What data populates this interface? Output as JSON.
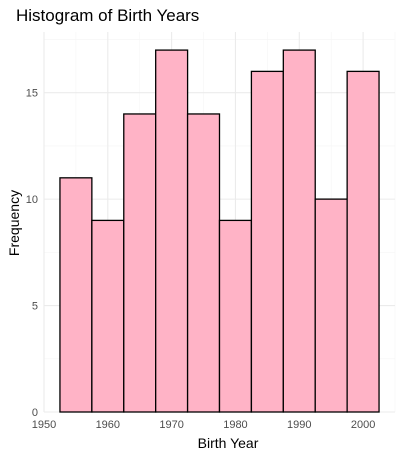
{
  "chart_data": {
    "type": "bar",
    "title": "Histogram of Birth Years",
    "xlabel": "Birth Year",
    "ylabel": "Frequency",
    "bin_width": 5,
    "bins": [
      {
        "start": 1952.5,
        "end": 1957.5,
        "value": 11
      },
      {
        "start": 1957.5,
        "end": 1962.5,
        "value": 9
      },
      {
        "start": 1962.5,
        "end": 1967.5,
        "value": 14
      },
      {
        "start": 1967.5,
        "end": 1972.5,
        "value": 17
      },
      {
        "start": 1972.5,
        "end": 1977.5,
        "value": 14
      },
      {
        "start": 1977.5,
        "end": 1982.5,
        "value": 9
      },
      {
        "start": 1982.5,
        "end": 1987.5,
        "value": 16
      },
      {
        "start": 1987.5,
        "end": 1992.5,
        "value": 17
      },
      {
        "start": 1992.5,
        "end": 1997.5,
        "value": 10
      },
      {
        "start": 1997.5,
        "end": 2002.5,
        "value": 16
      }
    ],
    "x_ticks": [
      "1950",
      "1960",
      "1970",
      "1980",
      "1990",
      "2000"
    ],
    "y_ticks": [
      "0",
      "5",
      "10",
      "15"
    ],
    "xlim": [
      1950,
      2005
    ],
    "ylim": [
      0,
      17.85
    ],
    "grid": true,
    "legend": "none",
    "colors": {
      "bar_fill": "#ffb3c6",
      "bar_stroke": "#000000"
    }
  }
}
